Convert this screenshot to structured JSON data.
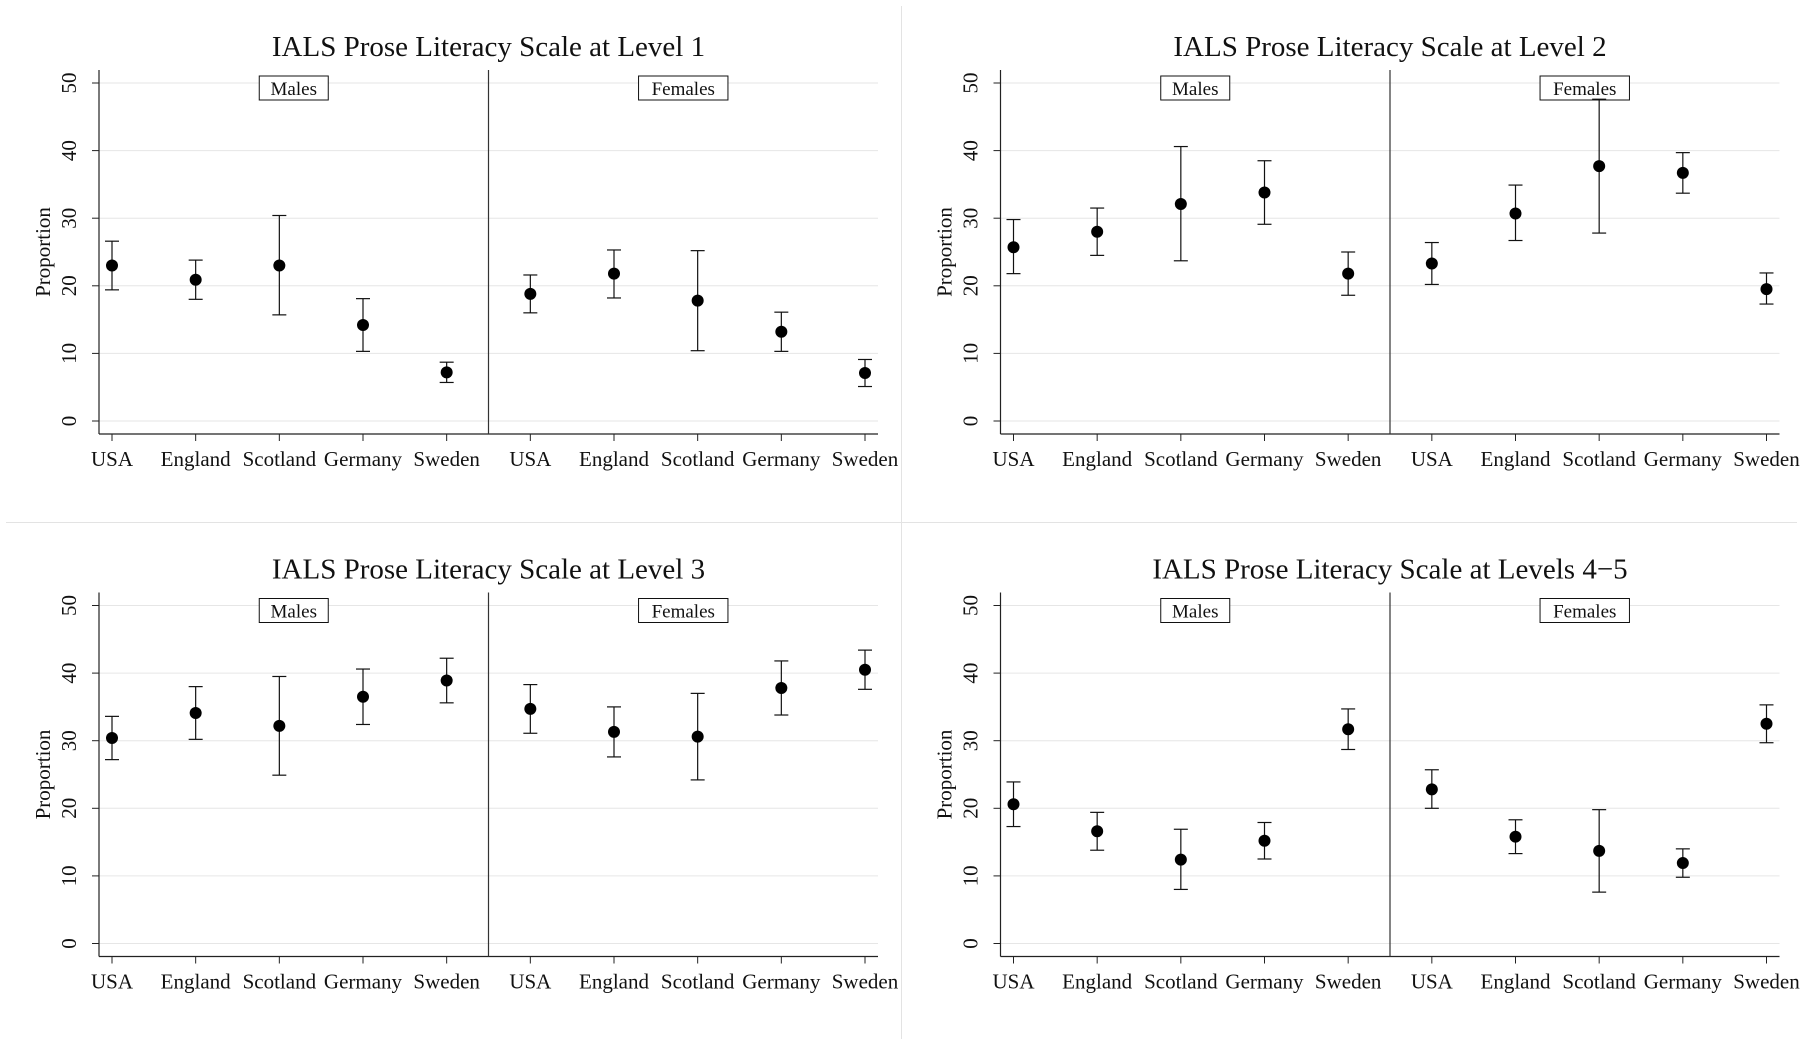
{
  "chart_data": [
    {
      "type": "scatter",
      "title": "IALS Prose Literacy Scale at Level 1",
      "ylabel": "Proportion",
      "ylim": [
        0,
        50
      ],
      "yticks": [
        0,
        10,
        20,
        30,
        40,
        50
      ],
      "groups": [
        "Males",
        "Females"
      ],
      "categories": [
        "USA",
        "England",
        "Scotland",
        "Germany",
        "Sweden"
      ],
      "series": [
        {
          "group": "Males",
          "values": [
            23.0,
            20.9,
            23.0,
            14.2,
            7.2
          ],
          "lower": [
            19.4,
            18.0,
            15.7,
            10.3,
            5.7
          ],
          "upper": [
            26.6,
            23.8,
            30.4,
            18.1,
            8.7
          ]
        },
        {
          "group": "Females",
          "values": [
            18.8,
            21.8,
            17.8,
            13.2,
            7.1
          ],
          "lower": [
            16.0,
            18.2,
            10.4,
            10.3,
            5.1
          ],
          "upper": [
            21.6,
            25.3,
            25.2,
            16.1,
            9.1
          ]
        }
      ],
      "grid": true
    },
    {
      "type": "scatter",
      "title": "IALS Prose Literacy Scale at Level 2",
      "ylabel": "Proportion",
      "ylim": [
        0,
        50
      ],
      "yticks": [
        0,
        10,
        20,
        30,
        40,
        50
      ],
      "groups": [
        "Males",
        "Females"
      ],
      "categories": [
        "USA",
        "England",
        "Scotland",
        "Germany",
        "Sweden"
      ],
      "series": [
        {
          "group": "Males",
          "values": [
            25.7,
            28.0,
            32.1,
            33.8,
            21.8
          ],
          "lower": [
            21.8,
            24.5,
            23.7,
            29.1,
            18.6
          ],
          "upper": [
            29.8,
            31.5,
            40.6,
            38.5,
            25.0
          ]
        },
        {
          "group": "Females",
          "values": [
            23.3,
            30.7,
            37.7,
            36.7,
            19.5
          ],
          "lower": [
            20.2,
            26.7,
            27.8,
            33.7,
            17.3
          ],
          "upper": [
            26.4,
            34.9,
            47.6,
            39.7,
            21.9
          ]
        }
      ],
      "grid": true
    },
    {
      "type": "scatter",
      "title": "IALS Prose Literacy Scale at Level 3",
      "ylabel": "Proportion",
      "ylim": [
        0,
        50
      ],
      "yticks": [
        0,
        10,
        20,
        30,
        40,
        50
      ],
      "groups": [
        "Males",
        "Females"
      ],
      "categories": [
        "USA",
        "England",
        "Scotland",
        "Germany",
        "Sweden"
      ],
      "series": [
        {
          "group": "Males",
          "values": [
            30.4,
            34.1,
            32.2,
            36.5,
            38.9
          ],
          "lower": [
            27.2,
            30.2,
            24.9,
            32.4,
            35.6
          ],
          "upper": [
            33.6,
            38.0,
            39.5,
            40.6,
            42.2
          ]
        },
        {
          "group": "Females",
          "values": [
            34.7,
            31.3,
            30.6,
            37.8,
            40.5
          ],
          "lower": [
            31.1,
            27.6,
            24.2,
            33.8,
            37.6
          ],
          "upper": [
            38.3,
            35.0,
            37.0,
            41.8,
            43.4
          ]
        }
      ],
      "grid": true
    },
    {
      "type": "scatter",
      "title": "IALS Prose Literacy Scale at Levels 4−5",
      "ylabel": "Proportion",
      "ylim": [
        0,
        50
      ],
      "yticks": [
        0,
        10,
        20,
        30,
        40,
        50
      ],
      "groups": [
        "Males",
        "Females"
      ],
      "categories": [
        "USA",
        "England",
        "Scotland",
        "Germany",
        "Sweden"
      ],
      "series": [
        {
          "group": "Males",
          "values": [
            20.6,
            16.6,
            12.4,
            15.2,
            31.7
          ],
          "lower": [
            17.3,
            13.8,
            8.0,
            12.5,
            28.7
          ],
          "upper": [
            23.9,
            19.4,
            16.9,
            17.9,
            34.7
          ]
        },
        {
          "group": "Females",
          "values": [
            22.8,
            15.8,
            13.7,
            11.9,
            32.5
          ],
          "lower": [
            20.0,
            13.3,
            7.6,
            9.8,
            29.7
          ],
          "upper": [
            25.7,
            18.3,
            19.8,
            14.0,
            35.3
          ]
        }
      ],
      "grid": true
    }
  ]
}
